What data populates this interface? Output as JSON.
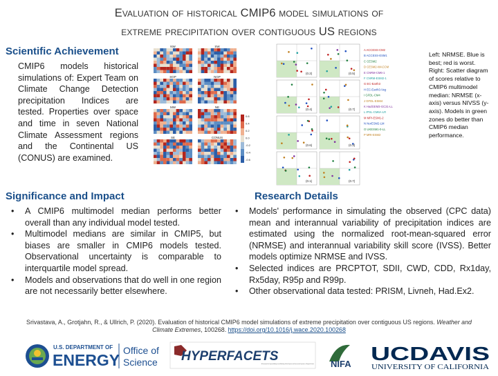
{
  "title": {
    "line1": "Evaluation of historical CMIP6 model simulations of",
    "line2": "extreme precipitation over contiguous US regions"
  },
  "achievement": {
    "heading": "Scientific Achievement",
    "text": "CMIP6 models historical simulations of: Expert Team on Climate Change Detection precipitation Indices are tested. Properties over space and time in seven National Climate Assessment regions and the Continental US (CONUS) are examined."
  },
  "significance": {
    "heading": "Significance and Impact",
    "bullets": [
      "A CMIP6 multimodel median performs better overall than any individual model tested.",
      "Multimodel medians are similar in CMIP5, but biases are smaller in CMIP6 models tested. Observational uncertainty is comparable to interquartile model spread.",
      "Models and observations that do well in one region are not necessarily better elsewhere."
    ]
  },
  "research": {
    "heading": "Research Details",
    "bullets": [
      "Models' performance in simulating the observed (CPC data) mean and interannual variability of precipitation indices are estimated using the normalized root-mean-squared error (NRMSE) and interannual variability skill score (IVSS). Better models optimize NRMSE and IVSS.",
      "Selected indices are PRCPTOT, SDII, CWD, CDD, Rx1day, Rx5day, R95p and R99p.",
      "Other observational data tested: PRISM, Livneh, Had.Ex2."
    ]
  },
  "figure": {
    "note": "Left: NRMSE. Blue is best; red is worst. Right: Scatter diagram of scores relative to CMIP6 multimodel median: NRMSE (x-axis) versus NIVSS (y-axis). Models in green zones do better than CMIP6 median performance.",
    "heatmap_labels": [
      "NW",
      "SW",
      "SGP",
      "NGP",
      "MW",
      "NE",
      "SE",
      "CONUS"
    ],
    "colorbar_ticks": [
      "0.6",
      "0.4",
      "0.2",
      "0.0",
      "-0.2",
      "-0.4",
      "-0.6"
    ],
    "models": [
      "A  ACCESS-CM2",
      "B  ACCESS-ESM1",
      "C  CESM2",
      "D  CESM2-WACCM",
      "E  CNRM-CM6-1",
      "F  CNRM-ESM2-1",
      "G  EC-Earth3",
      "H  EC-Earth3-Veg",
      "I  GFDL-CM4",
      "J  GFDL-ESM4",
      "K  HadGEM3-GC31-LL",
      "L  IPSL-CM6A-LR",
      "M  MPI-ESM1-2",
      "N  NorESM2-LM",
      "O  UKESM1-0-LL",
      "P  MRI-ESM2"
    ],
    "scatter_labels": [
      "(0.2)",
      "(0.5)",
      "(0.4)",
      "(0.7)",
      "(0.6)",
      "(0.3)",
      "(0.1)",
      "(0.7)"
    ]
  },
  "citation": {
    "prefix": "Srivastava, A., Grotjahn, R., & Ullrich, P. (2020). Evaluation of historical CMIP6 model simulations of extreme precipitation over contiguous US regions. ",
    "journal": "Weather and Climate Extremes",
    "suffix": ", 100268. ",
    "doi": "https://doi.org/10.1016/j.wace.2020.100268"
  },
  "footer": {
    "doe_line1": "U.S. DEPARTMENT OF",
    "doe_line2": "ENERGY",
    "office1": "Office of",
    "office2": "Science",
    "hyperfacets": "HYPERFACETS",
    "hyper_sub": "A Framework for Improved Analysis and Modeling of Earth System and Intersectoral Dynamics at Regional Scales",
    "nifa": "NIFA",
    "ucdavis": "UCDAVIS",
    "uc_sub": "UNIVERSITY OF CALIFORNIA"
  }
}
